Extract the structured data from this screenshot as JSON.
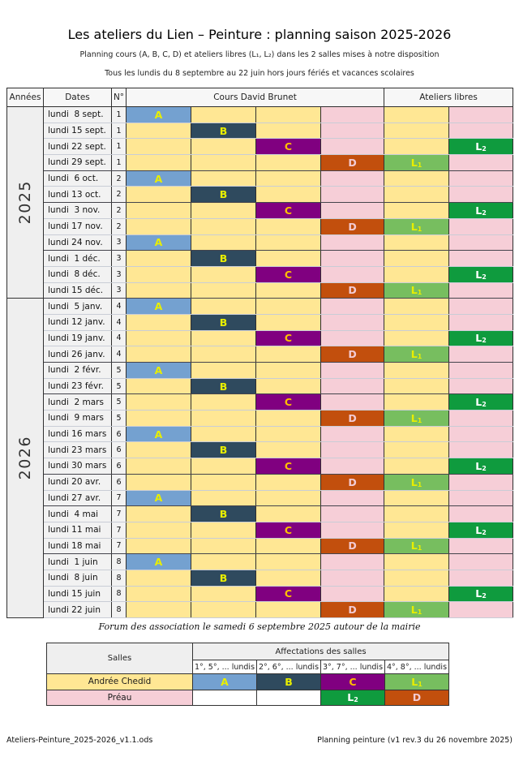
{
  "page": {
    "title": "Les ateliers du Lien – Peinture : planning saison 2025-2026",
    "subtitle1": "Planning cours (A, B, C, D) et ateliers libres (L₁, L₂) dans les 2 salles mises à notre disposition",
    "subtitle2": "Tous les lundis du 8 septembre au 22 juin hors jours fériés et vacances scolaires",
    "footer_note": "Forum des association le samedi 6 septembre 2025 autour de la mairie",
    "footer_left": "Ateliers-Peinture_2025-2026_v1.1.ods",
    "footer_right": "Planning peinture (v1 rev.3 du 26 novembre 2025)"
  },
  "planning_table": {
    "headers": {
      "years": "Années",
      "dates": "Dates",
      "num": "N°",
      "cours": "Cours David Brunet",
      "ateliers": "Ateliers libres"
    },
    "slot_columns": [
      "A",
      "B",
      "C",
      "D",
      "L1",
      "L2"
    ],
    "years": [
      {
        "label": "2025",
        "rows": 12
      },
      {
        "label": "2026",
        "rows": 20
      }
    ],
    "rows": [
      {
        "date": "lundi  8 sept.",
        "num": "1",
        "cours": "A",
        "libre": "",
        "month_end": false
      },
      {
        "date": "lundi 15 sept.",
        "num": "1",
        "cours": "B",
        "libre": "",
        "month_end": false
      },
      {
        "date": "lundi 22 sept.",
        "num": "1",
        "cours": "C",
        "libre": "L2",
        "month_end": false
      },
      {
        "date": "lundi 29 sept.",
        "num": "1",
        "cours": "D",
        "libre": "L1",
        "month_end": true
      },
      {
        "date": "lundi  6 oct.",
        "num": "2",
        "cours": "A",
        "libre": "",
        "month_end": false
      },
      {
        "date": "lundi 13 oct.",
        "num": "2",
        "cours": "B",
        "libre": "",
        "month_end": true
      },
      {
        "date": "lundi  3 nov.",
        "num": "2",
        "cours": "C",
        "libre": "L2",
        "month_end": false
      },
      {
        "date": "lundi 17 nov.",
        "num": "2",
        "cours": "D",
        "libre": "L1",
        "month_end": false
      },
      {
        "date": "lundi 24 nov.",
        "num": "3",
        "cours": "A",
        "libre": "",
        "month_end": true
      },
      {
        "date": "lundi  1 déc.",
        "num": "3",
        "cours": "B",
        "libre": "",
        "month_end": false
      },
      {
        "date": "lundi  8 déc.",
        "num": "3",
        "cours": "C",
        "libre": "L2",
        "month_end": false
      },
      {
        "date": "lundi 15 déc.",
        "num": "3",
        "cours": "D",
        "libre": "L1",
        "month_end": true
      },
      {
        "date": "lundi  5 janv.",
        "num": "4",
        "cours": "A",
        "libre": "",
        "month_end": false
      },
      {
        "date": "lundi 12 janv.",
        "num": "4",
        "cours": "B",
        "libre": "",
        "month_end": false
      },
      {
        "date": "lundi 19 janv.",
        "num": "4",
        "cours": "C",
        "libre": "L2",
        "month_end": false
      },
      {
        "date": "lundi 26 janv.",
        "num": "4",
        "cours": "D",
        "libre": "L1",
        "month_end": true
      },
      {
        "date": "lundi  2 févr.",
        "num": "5",
        "cours": "A",
        "libre": "",
        "month_end": false
      },
      {
        "date": "lundi 23 févr.",
        "num": "5",
        "cours": "B",
        "libre": "",
        "month_end": true
      },
      {
        "date": "lundi  2 mars",
        "num": "5",
        "cours": "C",
        "libre": "L2",
        "month_end": false
      },
      {
        "date": "lundi  9 mars",
        "num": "5",
        "cours": "D",
        "libre": "L1",
        "month_end": false
      },
      {
        "date": "lundi 16 mars",
        "num": "6",
        "cours": "A",
        "libre": "",
        "month_end": false
      },
      {
        "date": "lundi 23 mars",
        "num": "6",
        "cours": "B",
        "libre": "",
        "month_end": false
      },
      {
        "date": "lundi 30 mars",
        "num": "6",
        "cours": "C",
        "libre": "L2",
        "month_end": true
      },
      {
        "date": "lundi 20 avr.",
        "num": "6",
        "cours": "D",
        "libre": "L1",
        "month_end": false
      },
      {
        "date": "lundi 27 avr.",
        "num": "7",
        "cours": "A",
        "libre": "",
        "month_end": true
      },
      {
        "date": "lundi  4 mai",
        "num": "7",
        "cours": "B",
        "libre": "",
        "month_end": false
      },
      {
        "date": "lundi 11 mai",
        "num": "7",
        "cours": "C",
        "libre": "L2",
        "month_end": false
      },
      {
        "date": "lundi 18 mai",
        "num": "7",
        "cours": "D",
        "libre": "L1",
        "month_end": true
      },
      {
        "date": "lundi  1 juin",
        "num": "8",
        "cours": "A",
        "libre": "",
        "month_end": false
      },
      {
        "date": "lundi  8 juin",
        "num": "8",
        "cours": "B",
        "libre": "",
        "month_end": false
      },
      {
        "date": "lundi 15 juin",
        "num": "8",
        "cours": "C",
        "libre": "L2",
        "month_end": false
      },
      {
        "date": "lundi 22 juin",
        "num": "8",
        "cours": "D",
        "libre": "L1",
        "month_end": false
      }
    ]
  },
  "legend_table": {
    "salles_header": "Salles",
    "affectations_header": "Affectations des salles",
    "subheaders": [
      "1°, 5°, ... lundis",
      "2°, 6°, ... lundis",
      "3°, 7°, ... lundis",
      "4°, 8°, ... lundis"
    ],
    "rows": [
      {
        "room": "Andrée Chedid",
        "room_color": "yellow",
        "cells": [
          "A",
          "B",
          "C",
          "L1"
        ]
      },
      {
        "room": "Préau",
        "room_color": "pink",
        "cells": [
          "",
          "",
          "L2",
          "D"
        ]
      }
    ]
  },
  "colors": {
    "cell_yellow": "#FFE794",
    "cell_pink": "#F6CED7",
    "cell_gray": "#F2F2F2",
    "header_gray": "#EFEFEF",
    "slot_a_bg": "#74A1D0",
    "slot_b_bg": "#2F4A5E",
    "slot_c_bg": "#800080",
    "slot_d_bg": "#C24F0D",
    "slot_l1_bg": "#77BE5F",
    "slot_l2_bg": "#0F9B3E",
    "letter_yellow": "#E8EE00",
    "letter_gold": "#FFBF00",
    "letter_white": "#FFFFFF",
    "letter_pink": "#F2CBD3"
  }
}
